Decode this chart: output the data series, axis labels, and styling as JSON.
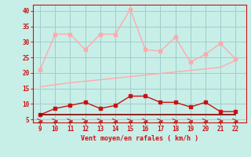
{
  "x": [
    9,
    10,
    11,
    12,
    13,
    14,
    15,
    16,
    17,
    18,
    19,
    20,
    21,
    22
  ],
  "rafales": [
    21,
    32.5,
    32.5,
    27.5,
    32.5,
    32.5,
    40.5,
    27.5,
    27,
    31.5,
    23.5,
    26,
    29.5,
    24.5
  ],
  "vent_moyen_line": [
    15.5,
    16.2,
    16.8,
    17.3,
    17.8,
    18.3,
    18.8,
    19.3,
    19.8,
    20.3,
    20.8,
    21.3,
    21.8,
    24.0
  ],
  "vent_moyen": [
    6.5,
    8.5,
    9.5,
    10.5,
    8.5,
    9.5,
    12.5,
    12.5,
    10.5,
    10.5,
    9.0,
    10.5,
    7.5,
    7.5
  ],
  "vent_constant": [
    6.5,
    6.5,
    6.5,
    6.5,
    6.5,
    6.5,
    6.5,
    6.5,
    6.5,
    6.5,
    6.5,
    6.5,
    6.5,
    6.5
  ],
  "bg_color": "#c8eee8",
  "grid_color": "#a0cccc",
  "rafales_color": "#ffaaaa",
  "trend_color": "#ffaaaa",
  "vent_moyen_color": "#cc1111",
  "vent_constant_color": "#880000",
  "axis_color": "#cc1111",
  "xlabel": "Vent moyen/en rafales ( km/h )",
  "xlim": [
    8.5,
    22.7
  ],
  "ylim": [
    4.0,
    42.0
  ],
  "yticks": [
    5,
    10,
    15,
    20,
    25,
    30,
    35,
    40
  ],
  "xticks": [
    9,
    10,
    11,
    12,
    13,
    14,
    15,
    16,
    17,
    18,
    19,
    20,
    21,
    22
  ]
}
